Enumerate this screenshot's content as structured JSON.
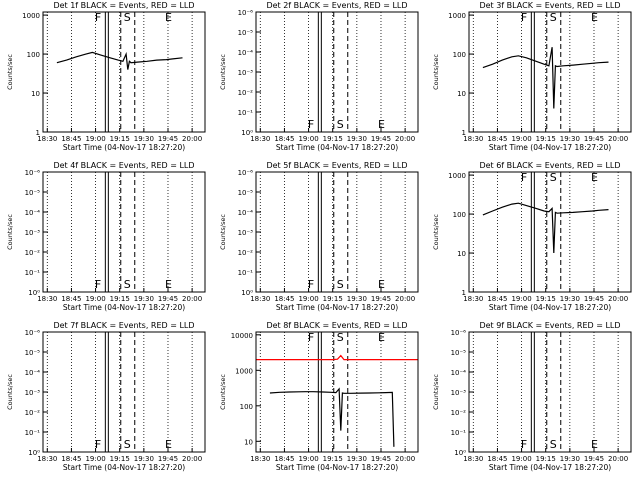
{
  "chart_data": [
    {
      "type": "line",
      "title": "Det 1f BLACK = Events, RED = LLD",
      "xlabel": "Start Time (04-Nov-17 18:27:20)",
      "ylabel": "Counts/sec",
      "y_scale": "log",
      "yticks": [
        "1",
        "10",
        "100",
        "1000"
      ],
      "ylim": [
        1,
        1200
      ],
      "xticks": [
        "18:30",
        "18:45",
        "19:00",
        "19:15",
        "19:30",
        "19:45",
        "20:00"
      ],
      "xlim": [
        "18:27:20",
        "20:08:00"
      ],
      "markers": [
        {
          "label": "F",
          "time": "19:07"
        },
        {
          "label": "S",
          "time": "19:20"
        },
        {
          "label": "E",
          "time": "19:45"
        }
      ],
      "series": [
        {
          "color": "#000000",
          "x": [
            "18:36",
            "18:42",
            "18:48",
            "18:54",
            "18:58",
            "19:03",
            "19:09",
            "19:14",
            "19:17",
            "19:19",
            "19:20",
            "19:21",
            "19:22",
            "19:26",
            "19:32",
            "19:38",
            "19:44",
            "19:48",
            "19:54"
          ],
          "y": [
            60,
            70,
            85,
            100,
            110,
            95,
            80,
            70,
            65,
            100,
            40,
            65,
            60,
            62,
            65,
            70,
            72,
            75,
            80
          ]
        }
      ]
    },
    {
      "type": "line",
      "title": "Det 2f BLACK = Events, RED = LLD",
      "xlabel": "Start Time (04-Nov-17 18:27:20)",
      "ylabel": "Counts/sec",
      "y_scale": "log",
      "yticks": [
        "10⁰",
        "10⁻¹",
        "10⁻²",
        "10⁻³",
        "10⁻⁴",
        "10⁻⁵",
        "10⁻⁶"
      ],
      "xticks": [
        "18:30",
        "18:45",
        "19:00",
        "19:15",
        "19:30",
        "19:45",
        "20:00"
      ],
      "xlim": [
        "18:27:20",
        "20:08:00"
      ],
      "markers": [
        {
          "label": "F",
          "time": "19:07"
        },
        {
          "label": "S",
          "time": "19:20"
        },
        {
          "label": "E",
          "time": "19:45"
        }
      ],
      "series": []
    },
    {
      "type": "line",
      "title": "Det 3f BLACK = Events, RED = LLD",
      "xlabel": "Start Time (04-Nov-17 18:27:20)",
      "ylabel": "Counts/sec",
      "y_scale": "log",
      "yticks": [
        "1",
        "10",
        "100",
        "1000"
      ],
      "ylim": [
        1,
        1200
      ],
      "xticks": [
        "18:30",
        "18:45",
        "19:00",
        "19:15",
        "19:30",
        "19:45",
        "20:00"
      ],
      "xlim": [
        "18:27:20",
        "20:08:00"
      ],
      "markers": [
        {
          "label": "F",
          "time": "19:07"
        },
        {
          "label": "S",
          "time": "19:20"
        },
        {
          "label": "E",
          "time": "19:45"
        }
      ],
      "series": [
        {
          "color": "#000000",
          "x": [
            "18:36",
            "18:42",
            "18:48",
            "18:54",
            "18:58",
            "19:03",
            "19:09",
            "19:14",
            "19:17",
            "19:19",
            "19:20",
            "19:21",
            "19:22",
            "19:26",
            "19:32",
            "19:38",
            "19:44",
            "19:48",
            "19:54"
          ],
          "y": [
            45,
            55,
            70,
            85,
            90,
            80,
            65,
            55,
            50,
            150,
            4,
            50,
            48,
            50,
            52,
            55,
            58,
            60,
            62
          ]
        }
      ]
    },
    {
      "type": "line",
      "title": "Det 4f BLACK = Events, RED = LLD",
      "xlabel": "Start Time (04-Nov-17 18:27:20)",
      "ylabel": "Counts/sec",
      "y_scale": "log",
      "yticks": [
        "10⁰",
        "10⁻¹",
        "10⁻²",
        "10⁻³",
        "10⁻⁴",
        "10⁻⁵",
        "10⁻⁶"
      ],
      "xticks": [
        "18:30",
        "18:45",
        "19:00",
        "19:15",
        "19:30",
        "19:45",
        "20:00"
      ],
      "xlim": [
        "18:27:20",
        "20:08:00"
      ],
      "markers": [
        {
          "label": "F",
          "time": "19:07"
        },
        {
          "label": "S",
          "time": "19:20"
        },
        {
          "label": "E",
          "time": "19:45"
        }
      ],
      "series": []
    },
    {
      "type": "line",
      "title": "Det 5f BLACK = Events, RED = LLD",
      "xlabel": "Start Time (04-Nov-17 18:27:20)",
      "ylabel": "Counts/sec",
      "y_scale": "log",
      "yticks": [
        "10⁰",
        "10⁻¹",
        "10⁻²",
        "10⁻³",
        "10⁻⁴",
        "10⁻⁵",
        "10⁻⁶"
      ],
      "xticks": [
        "18:30",
        "18:45",
        "19:00",
        "19:15",
        "19:30",
        "19:45",
        "20:00"
      ],
      "xlim": [
        "18:27:20",
        "20:08:00"
      ],
      "markers": [
        {
          "label": "F",
          "time": "19:07"
        },
        {
          "label": "S",
          "time": "19:20"
        },
        {
          "label": "E",
          "time": "19:45"
        }
      ],
      "series": []
    },
    {
      "type": "line",
      "title": "Det 6f BLACK = Events, RED = LLD",
      "xlabel": "Start Time (04-Nov-17 18:27:20)",
      "ylabel": "Counts/sec",
      "y_scale": "log",
      "yticks": [
        "1",
        "10",
        "100",
        "1000"
      ],
      "ylim": [
        1,
        1200
      ],
      "xticks": [
        "18:30",
        "18:45",
        "19:00",
        "19:15",
        "19:30",
        "19:45",
        "20:00"
      ],
      "xlim": [
        "18:27:20",
        "20:08:00"
      ],
      "markers": [
        {
          "label": "F",
          "time": "19:07"
        },
        {
          "label": "S",
          "time": "19:20"
        },
        {
          "label": "E",
          "time": "19:45"
        }
      ],
      "series": [
        {
          "color": "#000000",
          "x": [
            "18:36",
            "18:42",
            "18:48",
            "18:54",
            "18:58",
            "19:03",
            "19:09",
            "19:14",
            "19:17",
            "19:19",
            "19:20",
            "19:21",
            "19:22",
            "19:26",
            "19:32",
            "19:38",
            "19:44",
            "19:48",
            "19:54"
          ],
          "y": [
            95,
            120,
            150,
            180,
            190,
            165,
            140,
            120,
            115,
            140,
            10,
            110,
            105,
            108,
            110,
            115,
            120,
            125,
            130
          ]
        }
      ]
    },
    {
      "type": "line",
      "title": "Det 7f BLACK = Events, RED = LLD",
      "xlabel": "Start Time (04-Nov-17 18:27:20)",
      "ylabel": "Counts/sec",
      "y_scale": "log",
      "yticks": [
        "10⁰",
        "10⁻¹",
        "10⁻²",
        "10⁻³",
        "10⁻⁴",
        "10⁻⁵",
        "10⁻⁶"
      ],
      "xticks": [
        "18:30",
        "18:45",
        "19:00",
        "19:15",
        "19:30",
        "19:45",
        "20:00"
      ],
      "xlim": [
        "18:27:20",
        "20:08:00"
      ],
      "markers": [
        {
          "label": "F",
          "time": "19:07"
        },
        {
          "label": "S",
          "time": "19:20"
        },
        {
          "label": "E",
          "time": "19:45"
        }
      ],
      "series": []
    },
    {
      "type": "line",
      "title": "Det 8f BLACK = Events, RED = LLD",
      "xlabel": "Start Time (04-Nov-17 18:27:20)",
      "ylabel": "Counts/sec",
      "y_scale": "log",
      "yticks": [
        "10",
        "100",
        "1000",
        "10000"
      ],
      "ylim": [
        5,
        12000
      ],
      "xticks": [
        "18:30",
        "18:45",
        "19:00",
        "19:15",
        "19:30",
        "19:45",
        "20:00"
      ],
      "xlim": [
        "18:27:20",
        "20:08:00"
      ],
      "markers": [
        {
          "label": "F",
          "time": "19:07"
        },
        {
          "label": "S",
          "time": "19:20"
        },
        {
          "label": "E",
          "time": "19:45"
        }
      ],
      "series": [
        {
          "color": "#000000",
          "x": [
            "18:36",
            "18:42",
            "18:48",
            "18:54",
            "18:58",
            "19:03",
            "19:09",
            "19:14",
            "19:17",
            "19:19",
            "19:20",
            "19:21",
            "19:22",
            "19:26",
            "19:32",
            "19:38",
            "19:44",
            "19:48",
            "19:52",
            "19:53"
          ],
          "y": [
            230,
            240,
            245,
            248,
            250,
            250,
            245,
            240,
            235,
            300,
            20,
            230,
            225,
            225,
            228,
            230,
            232,
            235,
            238,
            7
          ]
        },
        {
          "color": "#ff0000",
          "x": [
            "18:27:20",
            "18:45",
            "19:00",
            "19:15",
            "19:18",
            "19:20",
            "19:22",
            "19:30",
            "19:45",
            "20:08"
          ],
          "y": [
            2000,
            2000,
            2000,
            2000,
            2050,
            2600,
            2000,
            2000,
            2000,
            2000
          ]
        }
      ]
    },
    {
      "type": "line",
      "title": "Det 9f BLACK = Events, RED = LLD",
      "xlabel": "Start Time (04-Nov-17 18:27:20)",
      "ylabel": "Counts/sec",
      "y_scale": "log",
      "yticks": [
        "10⁰",
        "10⁻¹",
        "10⁻²",
        "10⁻³",
        "10⁻⁴",
        "10⁻⁵",
        "10⁻⁶"
      ],
      "xticks": [
        "18:30",
        "18:45",
        "19:00",
        "19:15",
        "19:30",
        "19:45",
        "20:00"
      ],
      "xlim": [
        "18:27:20",
        "20:08:00"
      ],
      "markers": [
        {
          "label": "F",
          "time": "19:07"
        },
        {
          "label": "S",
          "time": "19:20"
        },
        {
          "label": "E",
          "time": "19:45"
        }
      ],
      "series": []
    }
  ]
}
